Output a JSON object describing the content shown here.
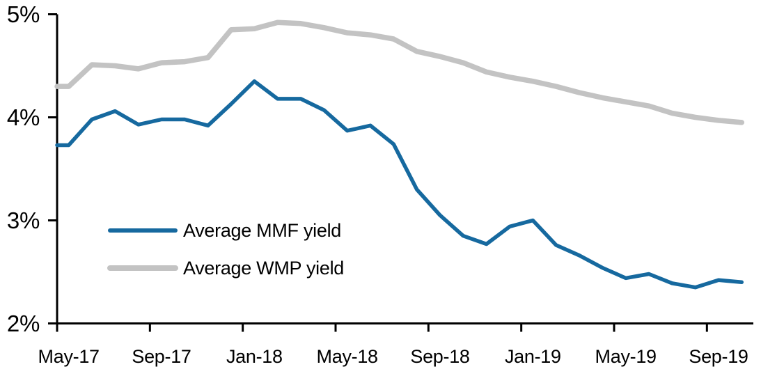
{
  "chart_data": {
    "type": "line",
    "title": "",
    "x_categories": [
      "May-17",
      "Jun-17",
      "Jul-17",
      "Aug-17",
      "Sep-17",
      "Oct-17",
      "Nov-17",
      "Dec-17",
      "Jan-18",
      "Feb-18",
      "Mar-18",
      "Apr-18",
      "May-18",
      "Jun-18",
      "Jul-18",
      "Aug-18",
      "Sep-18",
      "Oct-18",
      "Nov-18",
      "Dec-18",
      "Jan-19",
      "Feb-19",
      "Mar-19",
      "Apr-19",
      "May-19",
      "Jun-19",
      "Jul-19",
      "Aug-19",
      "Sep-19",
      "Oct-19"
    ],
    "x_tick_labels": [
      "May-17",
      "Sep-17",
      "Jan-18",
      "May-18",
      "Sep-18",
      "Jan-19",
      "May-19",
      "Sep-19"
    ],
    "x_tick_interval_months": 4,
    "y_tick_labels": [
      "2%",
      "3%",
      "4%",
      "5%"
    ],
    "y_tick_values": [
      2,
      3,
      4,
      5
    ],
    "ylim": [
      2,
      5
    ],
    "y_unit": "%",
    "grid": false,
    "legend_position": "inside-left-middle",
    "axis_color": "#000000",
    "series": [
      {
        "name": "Average MMF yield",
        "color": "#16699F",
        "stroke_width": 5.5,
        "values": [
          3.73,
          3.98,
          4.06,
          3.93,
          3.98,
          3.98,
          3.92,
          4.13,
          4.35,
          4.18,
          4.18,
          4.07,
          3.87,
          3.92,
          3.74,
          3.3,
          3.05,
          2.85,
          2.77,
          2.94,
          3.0,
          2.76,
          2.66,
          2.54,
          2.44,
          2.48,
          2.39,
          2.35,
          2.42,
          2.4
        ]
      },
      {
        "name": "Average WMP yield",
        "color": "#C3C3C3",
        "stroke_width": 7.5,
        "values": [
          4.3,
          4.51,
          4.5,
          4.47,
          4.53,
          4.54,
          4.58,
          4.85,
          4.86,
          4.92,
          4.91,
          4.87,
          4.82,
          4.8,
          4.76,
          4.64,
          4.59,
          4.53,
          4.44,
          4.39,
          4.35,
          4.3,
          4.24,
          4.19,
          4.15,
          4.11,
          4.04,
          4.0,
          3.97,
          3.95
        ]
      }
    ]
  }
}
